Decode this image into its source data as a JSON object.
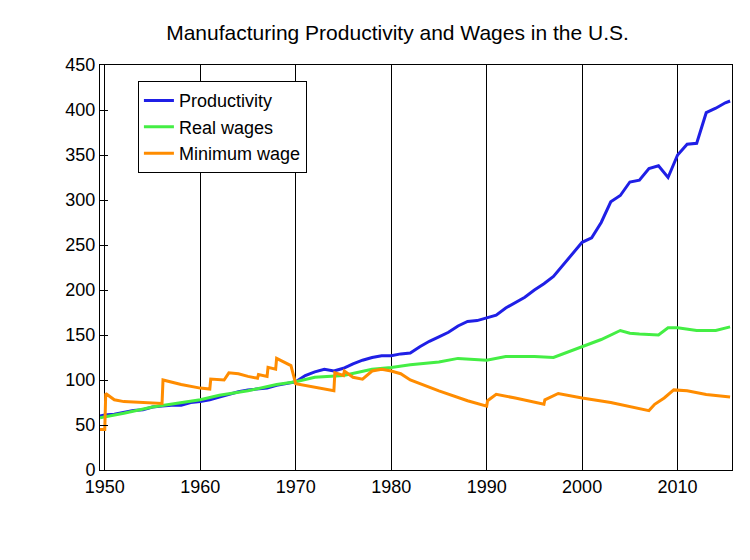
{
  "chart_data": {
    "type": "line",
    "title": "Manufacturing Productivity and Wages in the U.S.",
    "xlim": [
      1949.5,
      2015.7
    ],
    "xticks": [
      1950,
      1960,
      1970,
      1980,
      1990,
      2000,
      2010
    ],
    "ylim": [
      0,
      450
    ],
    "yticks": [
      0,
      50,
      100,
      150,
      200,
      250,
      300,
      350,
      400,
      450
    ],
    "grid": "x",
    "legend": "upper left",
    "series": [
      {
        "name": "Productivity",
        "color": "#1f1fe6",
        "x": [
          1949.5,
          1950,
          1951,
          1952,
          1953,
          1954,
          1955,
          1956,
          1957,
          1958,
          1959,
          1960,
          1961,
          1962,
          1963,
          1964,
          1965,
          1966,
          1967,
          1968,
          1969,
          1970,
          1971,
          1972,
          1973,
          1974,
          1975,
          1976,
          1977,
          1978,
          1979,
          1980,
          1981,
          1982,
          1983,
          1984,
          1985,
          1986,
          1987,
          1988,
          1989,
          1990,
          1991,
          1992,
          1993,
          1994,
          1995,
          1996,
          1997,
          1998,
          1999,
          2000,
          2001,
          2002,
          2003,
          2004,
          2005,
          2006,
          2007,
          2008,
          2009,
          2010,
          2011,
          2012,
          2013,
          2014,
          2015,
          2015.5
        ],
        "values": [
          60,
          61,
          62,
          64,
          66,
          67,
          70,
          71,
          72,
          72,
          75,
          76,
          78,
          81,
          84,
          87,
          89,
          90,
          91,
          94,
          96,
          98,
          105,
          109,
          112,
          110,
          113,
          118,
          122,
          125,
          127,
          127,
          129,
          130,
          137,
          143,
          148,
          153,
          160,
          165,
          166,
          169,
          172,
          180,
          186,
          192,
          200,
          207,
          215,
          228,
          240,
          253,
          258,
          275,
          298,
          305,
          320,
          322,
          335,
          338,
          325,
          350,
          362,
          363,
          397,
          402,
          408,
          410
        ]
      },
      {
        "name": "Real wages",
        "color": "#44ee44",
        "x": [
          1949.5,
          1952,
          1955,
          1958,
          1960,
          1962,
          1965,
          1968,
          1970,
          1972,
          1975,
          1978,
          1980,
          1982,
          1985,
          1987,
          1990,
          1992,
          1995,
          1997,
          1999,
          2000,
          2002,
          2004,
          2005,
          2006,
          2008,
          2009,
          2010,
          2012,
          2014,
          2015.5
        ],
        "values": [
          58,
          63,
          70,
          75,
          78,
          83,
          88,
          95,
          98,
          103,
          105,
          112,
          114,
          117,
          120,
          124,
          122,
          126,
          126,
          125,
          133,
          137,
          145,
          155,
          152,
          151,
          150,
          158,
          158,
          155,
          155,
          159
        ]
      },
      {
        "name": "Minimum wage",
        "color": "#ff8c00",
        "x": [
          1949.5,
          1950,
          1950.1,
          1951,
          1952,
          1955,
          1956,
          1956.1,
          1958,
          1960,
          1961,
          1961.1,
          1962.5,
          1963,
          1964,
          1965,
          1966,
          1966.1,
          1967,
          1967.1,
          1967.9,
          1968,
          1969,
          1969.5,
          1970,
          1971,
          1973,
          1974,
          1974.1,
          1975,
          1975.1,
          1976,
          1977,
          1978,
          1979,
          1980,
          1981,
          1982,
          1985,
          1988,
          1990,
          1990.1,
          1991,
          1993,
          1996,
          1996.1,
          1997.5,
          2000,
          2003,
          2006,
          2007,
          2007.6,
          2008.6,
          2009.6,
          2011,
          2013,
          2015.5
        ],
        "values": [
          45,
          45,
          85,
          78,
          76,
          74,
          74,
          100,
          95,
          91,
          90,
          101,
          100,
          108,
          107,
          104,
          102,
          106,
          104,
          114,
          112,
          124,
          119,
          116,
          96,
          94,
          90,
          88,
          108,
          105,
          110,
          103,
          101,
          110,
          112,
          110,
          107,
          100,
          88,
          77,
          71,
          77,
          84,
          80,
          73,
          78,
          85,
          80,
          75,
          68,
          66,
          73,
          80,
          89,
          88,
          84,
          81
        ]
      }
    ]
  }
}
